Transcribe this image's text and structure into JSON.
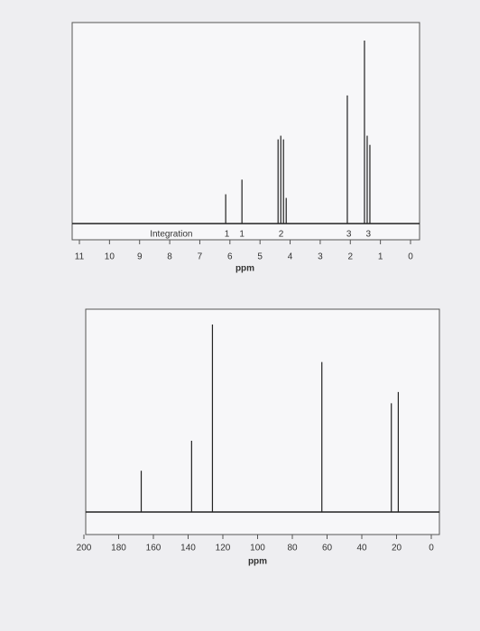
{
  "chart_data": [
    {
      "type": "stem",
      "xlabel": "ppm",
      "x": [
        6.14,
        5.6,
        4.4,
        4.31,
        4.22,
        4.13,
        2.1,
        1.53,
        1.44,
        1.35
      ],
      "values": [
        16,
        24,
        46,
        48,
        46,
        14,
        70,
        100,
        48,
        43
      ],
      "color": "#222222",
      "xlim": [
        11,
        0
      ],
      "xticks": [
        11,
        10,
        9,
        8,
        7,
        6,
        5,
        4,
        3,
        2,
        1,
        0
      ],
      "integration": {
        "label": "Integration",
        "values": [
          1,
          1,
          2,
          3,
          3
        ],
        "x": [
          6.1,
          5.6,
          4.3,
          2.05,
          1.4
        ]
      }
    },
    {
      "type": "stem",
      "xlabel": "ppm",
      "x": [
        167,
        138,
        126,
        63,
        23,
        19
      ],
      "values": [
        22,
        38,
        100,
        80,
        58,
        64
      ],
      "color": "#222222",
      "xlim": [
        200,
        0
      ],
      "xticks": [
        200,
        180,
        160,
        140,
        120,
        100,
        80,
        60,
        40,
        20,
        0
      ]
    }
  ]
}
